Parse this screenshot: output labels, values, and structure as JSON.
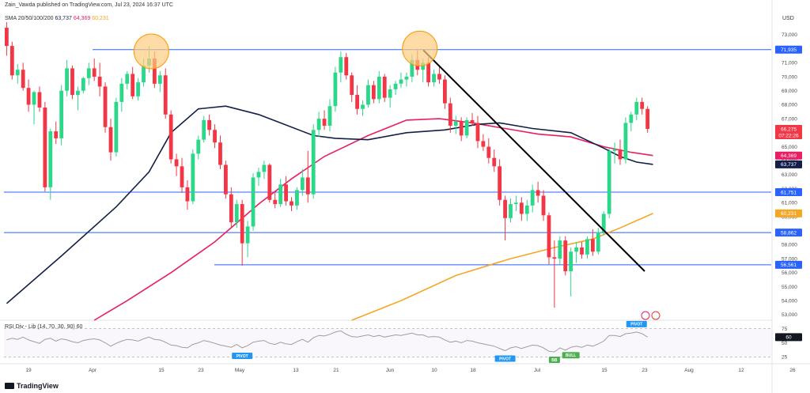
{
  "header": {
    "publisher": "Zain_Vawda published on TradingView.com, Jul 23, 2024 16:37 UTC",
    "indicator": "SMA 20/50/100/200",
    "sma_values": [
      {
        "value": "63,737",
        "color": "#131f49"
      },
      {
        "value": "64,369",
        "color": "#e91e63"
      },
      {
        "value": "60,231",
        "color": "#f5a623"
      }
    ],
    "currency": "USD"
  },
  "rsi_header": "RSI Div - Lib (14, 70, 30, 90)  60",
  "logo_text": "TradingView",
  "colors": {
    "up": "#26a69a",
    "up_bright": "#2bd889",
    "down": "#f23645",
    "horizontal_line": "#2962ff",
    "trendline": "#000000",
    "sma_dark": "#131f49",
    "sma_red": "#e91e63",
    "sma_orange": "#f5a623",
    "circle_fill": "#ffcc80",
    "circle_stroke": "#ff9800",
    "rsi_line": "#9e9e9e"
  },
  "chart_data": {
    "type": "candlestick",
    "y_axis_ticks": [
      "73,000",
      "72,000",
      "71,000",
      "70,000",
      "69,000",
      "68,000",
      "67,000",
      "66,000",
      "65,000",
      "64,000",
      "63,000",
      "62,000",
      "61,000",
      "60,000",
      "59,000",
      "58,000",
      "57,000",
      "56,000",
      "55,000",
      "54,000",
      "53,000"
    ],
    "x_axis_labels": [
      "19",
      "Apr",
      "15",
      "23",
      "May",
      "13",
      "21",
      "Jun",
      "10",
      "18",
      "Jul",
      "15",
      "23",
      "Aug",
      "12",
      "26"
    ],
    "ylim": [
      52600,
      73900
    ],
    "price_tags": [
      {
        "label": "71,935",
        "value": 71935,
        "color": "#2962ff"
      },
      {
        "label": "61,751",
        "value": 61751,
        "color": "#2962ff"
      },
      {
        "label": "58,862",
        "value": 58862,
        "color": "#2962ff"
      },
      {
        "label": "56,561",
        "value": 56561,
        "color": "#2962ff"
      },
      {
        "label": "66,275",
        "value": 66275,
        "color": "#f23645",
        "sub": "07:22:26"
      },
      {
        "label": "64,369",
        "value": 64369,
        "color": "#e91e63"
      },
      {
        "label": "63,737",
        "value": 63737,
        "color": "#131f49"
      },
      {
        "label": "60,231",
        "value": 60231,
        "color": "#f5a623"
      }
    ],
    "horizontal_levels": [
      71935,
      61751,
      58862,
      56561
    ],
    "ohlc": [
      [
        73500,
        73900,
        71500,
        72200
      ],
      [
        72200,
        72500,
        69800,
        70100
      ],
      [
        70100,
        70900,
        69500,
        70500
      ],
      [
        70500,
        71000,
        69000,
        69200
      ],
      [
        69200,
        69800,
        67500,
        68000
      ],
      [
        68000,
        69000,
        66600,
        68900
      ],
      [
        68900,
        69300,
        67500,
        67800
      ],
      [
        67800,
        68200,
        61800,
        62100
      ],
      [
        62100,
        66300,
        61200,
        66100
      ],
      [
        66100,
        66800,
        65200,
        65600
      ],
      [
        65600,
        69400,
        65100,
        69000
      ],
      [
        69000,
        71200,
        68600,
        70600
      ],
      [
        70600,
        70800,
        68400,
        68700
      ],
      [
        68700,
        69300,
        67600,
        69000
      ],
      [
        69000,
        70000,
        68800,
        69900
      ],
      [
        69900,
        71000,
        69400,
        70600
      ],
      [
        70600,
        71300,
        69700,
        70000
      ],
      [
        70000,
        71000,
        68600,
        69300
      ],
      [
        69300,
        69600,
        66000,
        66400
      ],
      [
        66400,
        67000,
        64000,
        64600
      ],
      [
        64600,
        68500,
        64300,
        68200
      ],
      [
        68200,
        69900,
        67500,
        69500
      ],
      [
        69500,
        70400,
        69100,
        70200
      ],
      [
        70200,
        70700,
        68400,
        68600
      ],
      [
        68600,
        69900,
        68300,
        69600
      ],
      [
        69600,
        71300,
        69300,
        70800
      ],
      [
        70800,
        72200,
        70300,
        71300
      ],
      [
        71300,
        71800,
        69200,
        69500
      ],
      [
        69500,
        70400,
        68900,
        70100
      ],
      [
        70100,
        70600,
        67000,
        67300
      ],
      [
        67300,
        67600,
        63800,
        64100
      ],
      [
        64100,
        64500,
        62900,
        63600
      ],
      [
        63600,
        64200,
        61700,
        62100
      ],
      [
        62100,
        62600,
        60500,
        61100
      ],
      [
        61100,
        64800,
        60900,
        64500
      ],
      [
        64500,
        65800,
        64100,
        65500
      ],
      [
        65500,
        67200,
        65300,
        66900
      ],
      [
        66900,
        67300,
        65800,
        66200
      ],
      [
        66200,
        66600,
        64900,
        65300
      ],
      [
        65300,
        65800,
        63400,
        63700
      ],
      [
        63700,
        64000,
        61300,
        61600
      ],
      [
        61600,
        62100,
        59200,
        59600
      ],
      [
        59600,
        61200,
        59200,
        60900
      ],
      [
        60900,
        61200,
        56500,
        58100
      ],
      [
        58100,
        59700,
        57100,
        59300
      ],
      [
        59300,
        63100,
        59000,
        62800
      ],
      [
        62800,
        63500,
        62200,
        63200
      ],
      [
        63200,
        64000,
        62700,
        63700
      ],
      [
        63700,
        63800,
        61000,
        61200
      ],
      [
        61200,
        61800,
        60600,
        60900
      ],
      [
        60900,
        62700,
        60700,
        62300
      ],
      [
        62300,
        62900,
        60800,
        61100
      ],
      [
        61100,
        61400,
        60400,
        60800
      ],
      [
        60800,
        62100,
        60500,
        61900
      ],
      [
        61900,
        63400,
        61500,
        62800
      ],
      [
        62800,
        64700,
        61000,
        61600
      ],
      [
        61600,
        66600,
        61300,
        66200
      ],
      [
        66200,
        67500,
        65700,
        67000
      ],
      [
        67000,
        67600,
        66200,
        66500
      ],
      [
        66500,
        68400,
        66100,
        67900
      ],
      [
        67900,
        70700,
        67500,
        70300
      ],
      [
        70300,
        71800,
        69600,
        71400
      ],
      [
        71400,
        71700,
        69800,
        70100
      ],
      [
        70100,
        70300,
        68200,
        68700
      ],
      [
        68700,
        69400,
        67300,
        67700
      ],
      [
        67700,
        68300,
        67200,
        68000
      ],
      [
        68000,
        69800,
        67800,
        69400
      ],
      [
        69400,
        69700,
        68100,
        68400
      ],
      [
        68400,
        70400,
        68100,
        70000
      ],
      [
        70000,
        70200,
        68200,
        68500
      ],
      [
        68500,
        69400,
        67800,
        69100
      ],
      [
        69100,
        69700,
        68700,
        69500
      ],
      [
        69500,
        70300,
        69200,
        69800
      ],
      [
        69800,
        70300,
        69300,
        70000
      ],
      [
        70000,
        71600,
        69600,
        71200
      ],
      [
        71200,
        71900,
        70100,
        70500
      ],
      [
        70500,
        71300,
        69600,
        71000
      ],
      [
        71000,
        71400,
        69300,
        69600
      ],
      [
        69600,
        70500,
        69300,
        70200
      ],
      [
        70200,
        70800,
        69500,
        69800
      ],
      [
        69800,
        70100,
        67700,
        68100
      ],
      [
        68100,
        68500,
        66000,
        66500
      ],
      [
        66500,
        67200,
        65900,
        66800
      ],
      [
        66800,
        67100,
        65400,
        65800
      ],
      [
        65800,
        67100,
        65600,
        66900
      ],
      [
        66900,
        67400,
        66500,
        66700
      ],
      [
        66700,
        67200,
        64900,
        65400
      ],
      [
        65400,
        65900,
        64700,
        65000
      ],
      [
        65000,
        65600,
        63800,
        64200
      ],
      [
        64200,
        64800,
        63200,
        63600
      ],
      [
        63600,
        64100,
        60800,
        61200
      ],
      [
        61200,
        61500,
        58300,
        59900
      ],
      [
        59900,
        61300,
        59600,
        60900
      ],
      [
        60900,
        61500,
        60400,
        61000
      ],
      [
        61000,
        61400,
        59700,
        60200
      ],
      [
        60200,
        61200,
        59700,
        60800
      ],
      [
        60800,
        62300,
        60300,
        61900
      ],
      [
        61900,
        62500,
        61000,
        61500
      ],
      [
        61500,
        61900,
        59700,
        60100
      ],
      [
        60100,
        60300,
        56600,
        57100
      ],
      [
        57100,
        58300,
        53500,
        57000
      ],
      [
        57000,
        58600,
        56600,
        58300
      ],
      [
        58300,
        58600,
        55800,
        56100
      ],
      [
        56100,
        57800,
        54300,
        57500
      ],
      [
        57500,
        58200,
        56700,
        57800
      ],
      [
        57800,
        58200,
        57000,
        57300
      ],
      [
        57300,
        58600,
        57000,
        58400
      ],
      [
        58400,
        59100,
        57200,
        57500
      ],
      [
        57500,
        59200,
        57300,
        58900
      ],
      [
        58900,
        60400,
        58700,
        60200
      ],
      [
        60200,
        64900,
        59900,
        64700
      ],
      [
        64700,
        65300,
        63800,
        64800
      ],
      [
        64800,
        65500,
        63700,
        64100
      ],
      [
        64100,
        67100,
        63800,
        66700
      ],
      [
        66700,
        67500,
        66100,
        67300
      ],
      [
        67300,
        68500,
        66900,
        68200
      ],
      [
        68200,
        68500,
        67300,
        67700
      ],
      [
        67700,
        67900,
        66000,
        66275
      ]
    ],
    "sma_dark": [
      [
        0,
        53800
      ],
      [
        10,
        57200
      ],
      [
        20,
        60700
      ],
      [
        26,
        63200
      ],
      [
        30,
        66000
      ],
      [
        35,
        67700
      ],
      [
        40,
        67900
      ],
      [
        46,
        67300
      ],
      [
        50,
        66700
      ],
      [
        56,
        65800
      ],
      [
        60,
        65600
      ],
      [
        66,
        65500
      ],
      [
        73,
        66000
      ],
      [
        80,
        66200
      ],
      [
        86,
        66600
      ],
      [
        90,
        66700
      ],
      [
        96,
        66300
      ],
      [
        103,
        66000
      ],
      [
        109,
        64900
      ],
      [
        112,
        64300
      ],
      [
        115,
        63900
      ],
      [
        118,
        63737
      ]
    ],
    "sma_red": [
      [
        16,
        52600
      ],
      [
        22,
        54000
      ],
      [
        30,
        56000
      ],
      [
        38,
        58200
      ],
      [
        46,
        60900
      ],
      [
        52,
        62700
      ],
      [
        58,
        64300
      ],
      [
        66,
        65800
      ],
      [
        73,
        66900
      ],
      [
        79,
        67000
      ],
      [
        85,
        66700
      ],
      [
        91,
        66300
      ],
      [
        97,
        65900
      ],
      [
        103,
        65700
      ],
      [
        109,
        65000
      ],
      [
        114,
        64600
      ],
      [
        118,
        64369
      ]
    ],
    "sma_orange": [
      [
        63,
        52600
      ],
      [
        72,
        54000
      ],
      [
        82,
        55800
      ],
      [
        92,
        57000
      ],
      [
        100,
        57800
      ],
      [
        107,
        58400
      ],
      [
        112,
        59200
      ],
      [
        118,
        60231
      ]
    ],
    "trendline": [
      [
        76,
        71900
      ],
      [
        118,
        56100
      ]
    ],
    "circles": [
      [
        27,
        71700
      ],
      [
        76,
        71900
      ]
    ],
    "rsi": {
      "levels": [
        "75",
        "60",
        "50",
        "25"
      ],
      "values": [
        55,
        58,
        56,
        60,
        55,
        52,
        49,
        56,
        58,
        53,
        57,
        55,
        52,
        50,
        54,
        56,
        57,
        55,
        50,
        44,
        49,
        53,
        56,
        55,
        53,
        57,
        60,
        56,
        55,
        51,
        46,
        45,
        42,
        41,
        47,
        50,
        54,
        52,
        49,
        46,
        44,
        42,
        47,
        41,
        45,
        51,
        53,
        54,
        49,
        47,
        51,
        48,
        47,
        52,
        56,
        51,
        59,
        63,
        62,
        65,
        69,
        71,
        65,
        61,
        60,
        62,
        64,
        61,
        63,
        60,
        62,
        64,
        63,
        65,
        67,
        64,
        64,
        60,
        61,
        60,
        55,
        51,
        53,
        50,
        54,
        53,
        50,
        48,
        46,
        44,
        40,
        36,
        41,
        43,
        40,
        43,
        46,
        45,
        41,
        35,
        34,
        41,
        37,
        42,
        44,
        42,
        46,
        44,
        48,
        53,
        63,
        63,
        61,
        66,
        67,
        69,
        66,
        60
      ]
    },
    "pivot_labels": [
      {
        "text": "PIVOT",
        "index": 43,
        "pos": "below"
      },
      {
        "text": "PIVOT",
        "index": 91,
        "pos": "below"
      },
      {
        "text": "BB",
        "index": 100,
        "pos": "below"
      },
      {
        "text": "BULL",
        "index": 103,
        "pos": "below"
      },
      {
        "text": "PIVOT",
        "index": 115,
        "pos": "above"
      }
    ]
  }
}
